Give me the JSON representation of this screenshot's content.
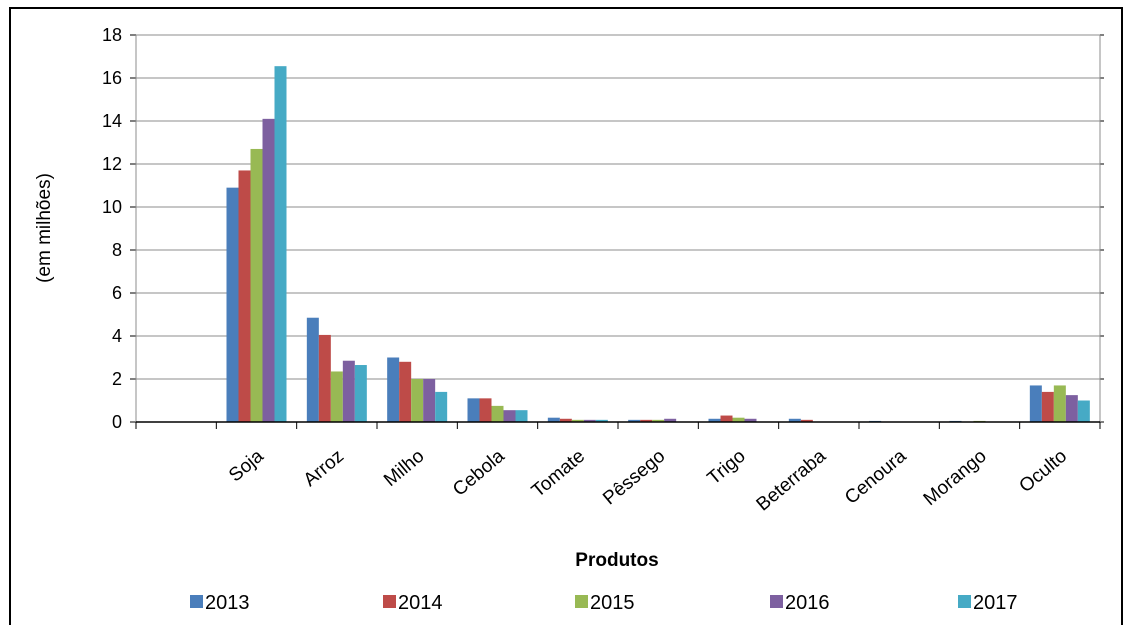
{
  "chart_data": {
    "type": "bar",
    "title": "",
    "xlabel": "Produtos",
    "ylabel": "(em milhões)",
    "ylim": [
      0,
      18
    ],
    "yticks": [
      "0",
      "2",
      "4",
      "6",
      "8",
      "10",
      "12",
      "14",
      "16",
      "18"
    ],
    "grid": true,
    "legend": "bottom",
    "categories": [
      "Soja",
      "Arroz",
      "Milho",
      "Cebola",
      "Tomate",
      "Pêssego",
      "Trigo",
      "Beterraba",
      "Cenoura",
      "Morango",
      "Oculto"
    ],
    "series": [
      {
        "name": "2013",
        "color": "#4a7ebb",
        "values": [
          10.9,
          4.85,
          3.0,
          1.1,
          0.2,
          0.1,
          0.15,
          0.15,
          0.05,
          0.05,
          1.7
        ]
      },
      {
        "name": "2014",
        "color": "#be4b48",
        "values": [
          11.7,
          4.05,
          2.8,
          1.1,
          0.15,
          0.1,
          0.3,
          0.1,
          0.0,
          0.0,
          1.4
        ]
      },
      {
        "name": "2015",
        "color": "#98b954",
        "values": [
          12.7,
          2.35,
          2.0,
          0.75,
          0.1,
          0.1,
          0.2,
          0.0,
          0.0,
          0.05,
          1.7
        ]
      },
      {
        "name": "2016",
        "color": "#7d60a0",
        "values": [
          14.1,
          2.85,
          2.0,
          0.55,
          0.1,
          0.15,
          0.15,
          0.0,
          0.0,
          0.0,
          1.25
        ]
      },
      {
        "name": "2017",
        "color": "#46aac5",
        "values": [
          16.55,
          2.65,
          1.4,
          0.55,
          0.1,
          0.0,
          0.0,
          0.0,
          0.0,
          0.0,
          1.0
        ]
      }
    ]
  }
}
